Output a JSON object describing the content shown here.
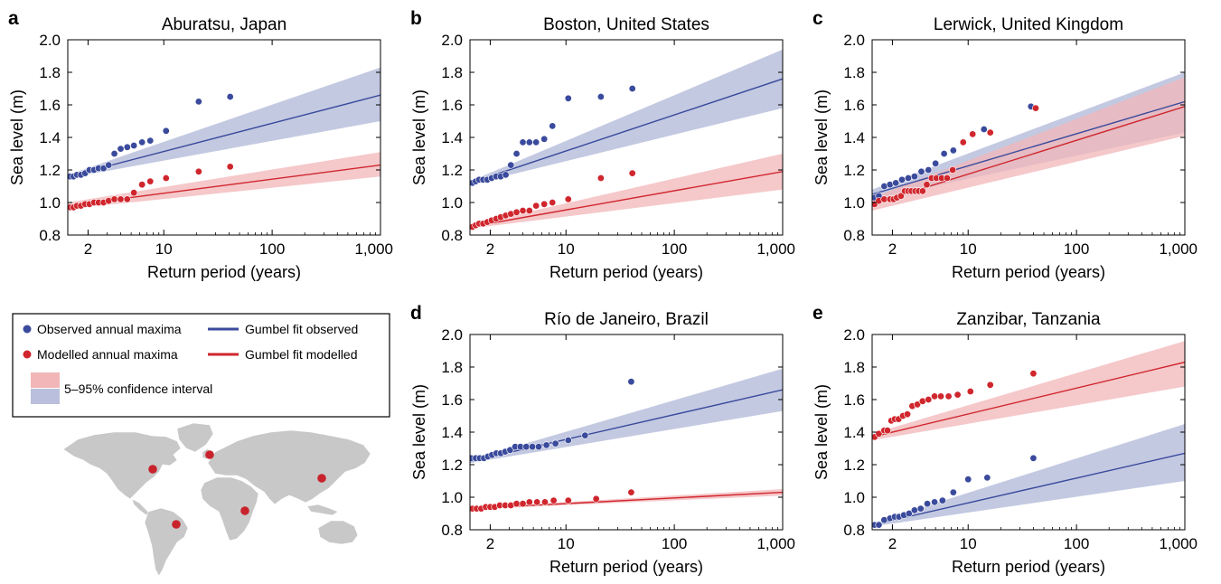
{
  "colors": {
    "observed": "#3a4a9c",
    "observed_band": "#b9bfdc",
    "modelled": "#d0262d",
    "modelled_band": "#f2b6b8",
    "map_land": "#c8c8c8",
    "map_dot": "#c8232c"
  },
  "legend": {
    "observed_points": "Observed annual maxima",
    "modelled_points": "Modelled annual maxima",
    "observed_fit": "Gumbel fit observed",
    "modelled_fit": "Gumbel fit modelled",
    "confidence": "5–95% confidence interval"
  },
  "chart_data": [
    {
      "type": "scatter",
      "letter": "a",
      "title": "Aburatsu, Japan",
      "xlabel": "Return period (years)",
      "ylabel": "Sea level (m)",
      "xscale": "log",
      "xticks": [
        2,
        10,
        100,
        1000
      ],
      "xtick_labels": [
        "2",
        "10",
        "100",
        "1,000"
      ],
      "xlim": [
        1.3,
        1000
      ],
      "yticks": [
        0.8,
        1.0,
        1.2,
        1.4,
        1.6,
        1.8,
        2.0
      ],
      "ytick_labels": [
        "0.8",
        "1.0",
        "1.2",
        "1.4",
        "1.6",
        "1.8",
        "2.0"
      ],
      "ylim": [
        0.8,
        2.0
      ],
      "series": [
        {
          "name": "Observed annual maxima",
          "kind": "points",
          "group": "observed",
          "x": [
            1.37,
            1.47,
            1.58,
            1.72,
            1.88,
            2.06,
            2.27,
            2.5,
            2.78,
            3.1,
            3.5,
            4.0,
            4.6,
            5.3,
            6.3,
            7.5,
            10.5,
            21,
            41
          ],
          "y": [
            1.16,
            1.16,
            1.17,
            1.17,
            1.18,
            1.2,
            1.2,
            1.21,
            1.21,
            1.23,
            1.3,
            1.33,
            1.34,
            1.35,
            1.37,
            1.38,
            1.44,
            1.62,
            1.65
          ]
        },
        {
          "name": "Modelled annual maxima",
          "kind": "points",
          "group": "modelled",
          "x": [
            1.37,
            1.47,
            1.58,
            1.72,
            1.88,
            2.06,
            2.27,
            2.5,
            2.78,
            3.1,
            3.5,
            4.0,
            4.6,
            5.3,
            6.3,
            7.5,
            10.5,
            21,
            41
          ],
          "y": [
            0.97,
            0.97,
            0.98,
            0.98,
            0.99,
            0.99,
            1.0,
            1.0,
            1.0,
            1.01,
            1.02,
            1.02,
            1.02,
            1.06,
            1.11,
            1.13,
            1.15,
            1.19,
            1.22
          ]
        },
        {
          "name": "Gumbel fit observed",
          "kind": "fit",
          "group": "observed",
          "x": [
            1.3,
            1000
          ],
          "y": [
            1.16,
            1.66
          ],
          "lower": [
            1.15,
            1.5
          ],
          "upper": [
            1.17,
            1.83
          ]
        },
        {
          "name": "Gumbel fit modelled",
          "kind": "fit",
          "group": "modelled",
          "x": [
            1.3,
            1000
          ],
          "y": [
            0.98,
            1.23
          ],
          "lower": [
            0.96,
            1.16
          ],
          "upper": [
            1.0,
            1.31
          ]
        }
      ]
    },
    {
      "type": "scatter",
      "letter": "b",
      "title": "Boston, United States",
      "xlabel": "Return period (years)",
      "ylabel": "Sea level (m)",
      "xscale": "log",
      "xticks": [
        2,
        10,
        100,
        1000
      ],
      "xtick_labels": [
        "2",
        "10",
        "100",
        "1,000"
      ],
      "xlim": [
        1.3,
        1000
      ],
      "yticks": [
        0.8,
        1.0,
        1.2,
        1.4,
        1.6,
        1.8,
        2.0
      ],
      "ytick_labels": [
        "0.8",
        "1.0",
        "1.2",
        "1.4",
        "1.6",
        "1.8",
        "2.0"
      ],
      "ylim": [
        0.8,
        2.0
      ],
      "series": [
        {
          "name": "Observed annual maxima",
          "kind": "points",
          "group": "observed",
          "x": [
            1.37,
            1.47,
            1.58,
            1.72,
            1.88,
            2.06,
            2.27,
            2.5,
            2.78,
            3.1,
            3.5,
            4.0,
            4.6,
            5.3,
            6.3,
            7.5,
            10.5,
            21,
            41
          ],
          "y": [
            1.12,
            1.13,
            1.14,
            1.14,
            1.14,
            1.15,
            1.16,
            1.16,
            1.17,
            1.23,
            1.3,
            1.37,
            1.37,
            1.37,
            1.39,
            1.47,
            1.64,
            1.65,
            1.7
          ]
        },
        {
          "name": "Modelled annual maxima",
          "kind": "points",
          "group": "modelled",
          "x": [
            1.37,
            1.47,
            1.58,
            1.72,
            1.88,
            2.06,
            2.27,
            2.5,
            2.78,
            3.1,
            3.5,
            4.0,
            4.6,
            5.3,
            6.3,
            7.5,
            10.5,
            21,
            41
          ],
          "y": [
            0.85,
            0.86,
            0.87,
            0.87,
            0.88,
            0.89,
            0.9,
            0.91,
            0.92,
            0.93,
            0.94,
            0.95,
            0.95,
            0.98,
            0.99,
            1.0,
            1.02,
            1.15,
            1.18
          ]
        },
        {
          "name": "Gumbel fit observed",
          "kind": "fit",
          "group": "observed",
          "x": [
            1.3,
            1000
          ],
          "y": [
            1.12,
            1.76
          ],
          "lower": [
            1.11,
            1.58
          ],
          "upper": [
            1.13,
            1.94
          ]
        },
        {
          "name": "Gumbel fit modelled",
          "kind": "fit",
          "group": "modelled",
          "x": [
            1.3,
            1000
          ],
          "y": [
            0.85,
            1.19
          ],
          "lower": [
            0.84,
            1.08
          ],
          "upper": [
            0.86,
            1.3
          ]
        }
      ]
    },
    {
      "type": "scatter",
      "letter": "c",
      "title": "Lerwick, United Kingdom",
      "xlabel": "Return period (years)",
      "ylabel": "Sea level (m)",
      "xscale": "log",
      "xticks": [
        2,
        10,
        100,
        1000
      ],
      "xtick_labels": [
        "2",
        "10",
        "100",
        "1,000"
      ],
      "xlim": [
        1.3,
        1000
      ],
      "yticks": [
        0.8,
        1.0,
        1.2,
        1.4,
        1.6,
        1.8,
        2.0
      ],
      "ytick_labels": [
        "0.8",
        "1.0",
        "1.2",
        "1.4",
        "1.6",
        "1.8",
        "2.0"
      ],
      "ylim": [
        0.8,
        2.0
      ],
      "series": [
        {
          "name": "Observed annual maxima",
          "kind": "points",
          "group": "observed",
          "x": [
            1.37,
            1.5,
            1.68,
            1.9,
            2.15,
            2.45,
            2.8,
            3.2,
            3.7,
            4.3,
            5.0,
            6.0,
            7.3,
            9.0,
            14,
            38
          ],
          "y": [
            1.03,
            1.04,
            1.1,
            1.11,
            1.12,
            1.14,
            1.15,
            1.16,
            1.19,
            1.2,
            1.24,
            1.3,
            1.32,
            1.37,
            1.45,
            1.59
          ]
        },
        {
          "name": "Modelled annual maxima",
          "kind": "points",
          "group": "modelled",
          "x": [
            1.37,
            1.5,
            1.68,
            1.9,
            2.05,
            2.2,
            2.4,
            2.6,
            2.8,
            3.0,
            3.25,
            3.5,
            3.8,
            4.15,
            4.6,
            5.1,
            5.7,
            6.4,
            7.2,
            9.0,
            11,
            16,
            42
          ],
          "y": [
            0.99,
            1.01,
            1.02,
            1.02,
            1.02,
            1.03,
            1.04,
            1.07,
            1.07,
            1.07,
            1.07,
            1.07,
            1.07,
            1.11,
            1.15,
            1.15,
            1.15,
            1.15,
            1.2,
            1.37,
            1.42,
            1.43,
            1.58
          ]
        },
        {
          "name": "Gumbel fit observed",
          "kind": "fit",
          "group": "observed",
          "x": [
            1.3,
            1000
          ],
          "y": [
            1.05,
            1.62
          ],
          "lower": [
            1.02,
            1.43
          ],
          "upper": [
            1.08,
            1.8
          ]
        },
        {
          "name": "Gumbel fit modelled",
          "kind": "fit",
          "group": "modelled",
          "x": [
            1.3,
            1000
          ],
          "y": [
            0.99,
            1.59
          ],
          "lower": [
            0.95,
            1.41
          ],
          "upper": [
            1.03,
            1.77
          ]
        }
      ]
    },
    {
      "type": "scatter",
      "letter": "d",
      "title": "Río de Janeiro, Brazil",
      "xlabel": "Return period (years)",
      "ylabel": "Sea level (m)",
      "xscale": "log",
      "xticks": [
        2,
        10,
        100,
        1000
      ],
      "xtick_labels": [
        "2",
        "10",
        "100",
        "1,000"
      ],
      "xlim": [
        1.3,
        1000
      ],
      "yticks": [
        0.8,
        1.0,
        1.2,
        1.4,
        1.6,
        1.8,
        2.0
      ],
      "ytick_labels": [
        "0.8",
        "1.0",
        "1.2",
        "1.4",
        "1.6",
        "1.8",
        "2.0"
      ],
      "ylim": [
        0.8,
        2.0
      ],
      "series": [
        {
          "name": "Observed annual maxima",
          "kind": "points",
          "group": "observed",
          "x": [
            1.33,
            1.47,
            1.6,
            1.75,
            1.9,
            2.08,
            2.28,
            2.5,
            2.75,
            3.05,
            3.4,
            3.8,
            4.3,
            4.9,
            5.6,
            6.6,
            8.0,
            10.5,
            15,
            40
          ],
          "y": [
            1.24,
            1.24,
            1.24,
            1.24,
            1.25,
            1.26,
            1.27,
            1.27,
            1.28,
            1.29,
            1.31,
            1.31,
            1.31,
            1.31,
            1.31,
            1.32,
            1.33,
            1.35,
            1.38,
            1.71
          ]
        },
        {
          "name": "Modelled annual maxima",
          "kind": "points",
          "group": "modelled",
          "x": [
            1.37,
            1.5,
            1.65,
            1.82,
            2.0,
            2.2,
            2.45,
            2.75,
            3.1,
            3.5,
            4.0,
            4.6,
            5.4,
            6.4,
            7.7,
            10.5,
            19,
            40
          ],
          "y": [
            0.93,
            0.93,
            0.93,
            0.94,
            0.94,
            0.94,
            0.95,
            0.95,
            0.95,
            0.96,
            0.96,
            0.97,
            0.97,
            0.97,
            0.98,
            0.98,
            0.99,
            1.03
          ]
        },
        {
          "name": "Gumbel fit observed",
          "kind": "fit",
          "group": "observed",
          "x": [
            1.3,
            1000
          ],
          "y": [
            1.22,
            1.66
          ],
          "lower": [
            1.21,
            1.53
          ],
          "upper": [
            1.23,
            1.79
          ]
        },
        {
          "name": "Gumbel fit modelled",
          "kind": "fit",
          "group": "modelled",
          "x": [
            1.3,
            1000
          ],
          "y": [
            0.93,
            1.03
          ],
          "lower": [
            0.925,
            1.01
          ],
          "upper": [
            0.935,
            1.05
          ]
        }
      ]
    },
    {
      "type": "scatter",
      "letter": "e",
      "title": "Zanzibar, Tanzania",
      "xlabel": "Return period (years)",
      "ylabel": "Sea level (m)",
      "xscale": "log",
      "xticks": [
        2,
        10,
        100,
        1000
      ],
      "xtick_labels": [
        "2",
        "10",
        "100",
        "1,000"
      ],
      "xlim": [
        1.3,
        1000
      ],
      "yticks": [
        0.8,
        1.0,
        1.2,
        1.4,
        1.6,
        1.8,
        2.0
      ],
      "ytick_labels": [
        "0.8",
        "1.0",
        "1.2",
        "1.4",
        "1.6",
        "1.8",
        "2.0"
      ],
      "ylim": [
        0.8,
        2.0
      ],
      "series": [
        {
          "name": "Observed annual maxima",
          "kind": "points",
          "group": "observed",
          "x": [
            1.37,
            1.5,
            1.68,
            1.9,
            2.1,
            2.3,
            2.55,
            2.85,
            3.2,
            3.65,
            4.2,
            4.9,
            5.8,
            7.3,
            10,
            15,
            40
          ],
          "y": [
            0.83,
            0.83,
            0.86,
            0.87,
            0.88,
            0.88,
            0.89,
            0.9,
            0.92,
            0.93,
            0.96,
            0.97,
            0.98,
            1.03,
            1.11,
            1.12,
            1.24
          ]
        },
        {
          "name": "Modelled annual maxima",
          "kind": "points",
          "group": "modelled",
          "x": [
            1.37,
            1.5,
            1.68,
            1.8,
            1.95,
            2.1,
            2.28,
            2.5,
            2.75,
            3.05,
            3.4,
            3.8,
            4.3,
            4.9,
            5.6,
            6.6,
            8.0,
            10.5,
            16,
            40
          ],
          "y": [
            1.37,
            1.39,
            1.41,
            1.41,
            1.47,
            1.48,
            1.48,
            1.5,
            1.51,
            1.56,
            1.57,
            1.59,
            1.6,
            1.62,
            1.62,
            1.62,
            1.63,
            1.65,
            1.69,
            1.76
          ]
        },
        {
          "name": "Gumbel fit observed",
          "kind": "fit",
          "group": "observed",
          "x": [
            1.3,
            1000
          ],
          "y": [
            0.83,
            1.27
          ],
          "lower": [
            0.82,
            1.1
          ],
          "upper": [
            0.84,
            1.45
          ]
        },
        {
          "name": "Gumbel fit modelled",
          "kind": "fit",
          "group": "modelled",
          "x": [
            1.3,
            1000
          ],
          "y": [
            1.37,
            1.83
          ],
          "lower": [
            1.35,
            1.68
          ],
          "upper": [
            1.39,
            1.96
          ]
        }
      ]
    }
  ]
}
